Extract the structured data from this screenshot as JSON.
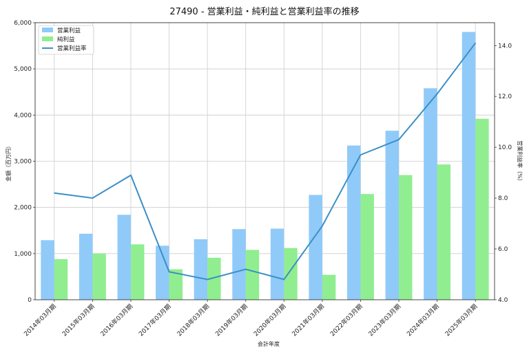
{
  "chart_data": {
    "type": "bar",
    "title": "27490 - 営業利益・純利益と営業利益率の推移",
    "xlabel": "会計年度",
    "ylabel": "金額（百万円）",
    "ylabel_right": "営業利益率（%）",
    "categories": [
      "2014年03月期",
      "2015年03月期",
      "2016年03月期",
      "2017年03月期",
      "2018年03月期",
      "2019年03月期",
      "2020年03月期",
      "2021年03月期",
      "2022年03月期",
      "2023年03月期",
      "2024年03月期",
      "2025年03月期"
    ],
    "series": [
      {
        "name": "営業利益",
        "kind": "bar",
        "axis": "left",
        "color": "#90CAF9",
        "values": [
          1290,
          1430,
          1840,
          1170,
          1310,
          1530,
          1540,
          2270,
          3340,
          3660,
          4580,
          5800
        ]
      },
      {
        "name": "純利益",
        "kind": "bar",
        "axis": "left",
        "color": "#90EE90",
        "values": [
          880,
          1000,
          1200,
          660,
          910,
          1080,
          1120,
          540,
          2290,
          2700,
          2930,
          3920
        ]
      },
      {
        "name": "営業利益率",
        "kind": "line",
        "axis": "right",
        "color": "#3A8FC7",
        "values": [
          8.2,
          8.0,
          8.9,
          5.1,
          4.8,
          5.2,
          4.8,
          6.9,
          9.7,
          10.3,
          12.1,
          14.1
        ]
      }
    ],
    "ylim": [
      0,
      6000
    ],
    "ylim_right": [
      4.0,
      14.9
    ],
    "yticks": [
      "0",
      "1,000",
      "2,000",
      "3,000",
      "4,000",
      "5,000",
      "6,000"
    ],
    "yticks_right": [
      "4.0",
      "6.0",
      "8.0",
      "10.0",
      "12.0",
      "14.0"
    ],
    "grid": true,
    "legend_position": "top-left"
  }
}
